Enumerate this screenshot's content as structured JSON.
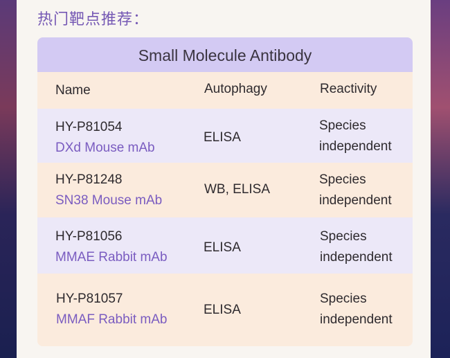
{
  "section_title": "热门靶点推荐：",
  "table": {
    "title": "Small Molecule Antibody",
    "headers": [
      "Name",
      "Autophagy",
      "Reactivity"
    ],
    "rows": [
      {
        "id": "HY-P81054",
        "name": "DXd Mouse mAb",
        "autophagy": "ELISA",
        "reactivity_1": "Species",
        "reactivity_2": "independent"
      },
      {
        "id": "HY-P81248",
        "name": "SN38 Mouse mAb",
        "autophagy": "WB, ELISA",
        "reactivity_1": "Species",
        "reactivity_2": "independent"
      },
      {
        "id": "HY-P81056",
        "name": "MMAE Rabbit mAb",
        "autophagy": "ELISA",
        "reactivity_1": "Species",
        "reactivity_2": "independent"
      },
      {
        "id": "HY-P81057",
        "name": "MMAF Rabbit mAb",
        "autophagy": "ELISA",
        "reactivity_1": "Species",
        "reactivity_2": "independent"
      }
    ]
  },
  "colors": {
    "accent": "#7558b4",
    "header_bg": "#d3caf3",
    "row_lavender": "#ece8f8",
    "row_peach": "#fbebdd"
  }
}
